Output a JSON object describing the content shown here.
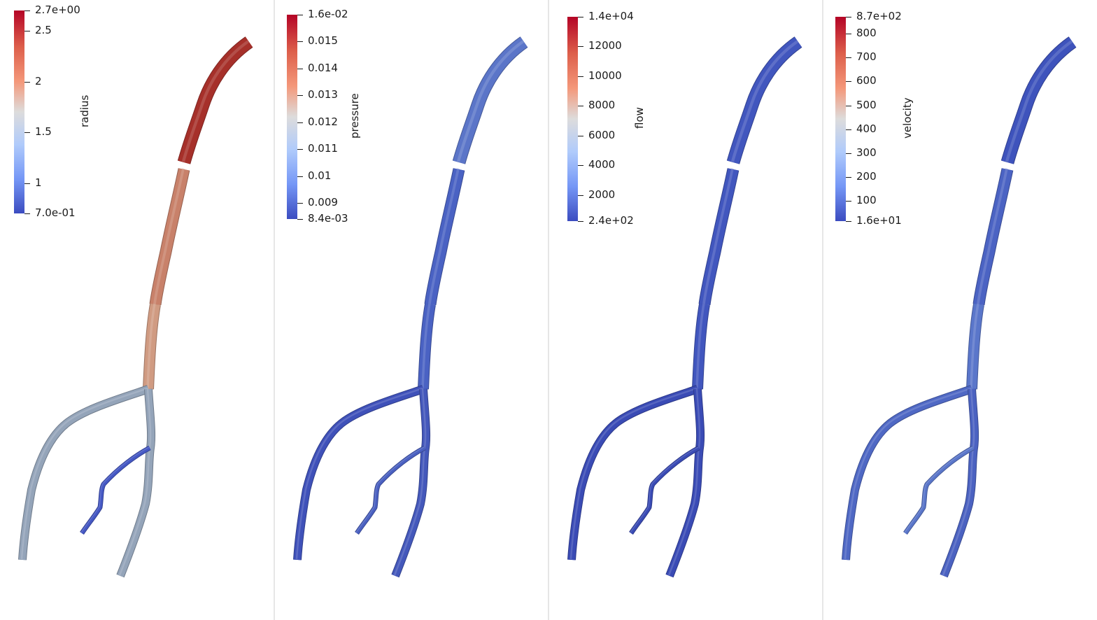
{
  "panels": [
    {
      "title": "radius",
      "max_label": "2.7e+00",
      "min_label": "7.0e-01",
      "range": [
        0.7,
        2.7
      ],
      "ticks": [
        "2.5",
        "2",
        "1.5",
        "1"
      ],
      "segments": {
        "trunk_upper": "#a6302a",
        "trunk_mid": "#c8816a",
        "trunk_lower": "#d09b82",
        "left_branch": "#94a4b9",
        "right_branch": "#94a4b9",
        "small_branch": "#4558c4"
      }
    },
    {
      "title": "pressure",
      "max_label": "1.6e-02",
      "min_label": "8.4e-03",
      "range": [
        0.0084,
        0.016
      ],
      "ticks": [
        "0.015",
        "0.014",
        "0.013",
        "0.012",
        "0.011",
        "0.01",
        "0.009"
      ],
      "segments": {
        "trunk_upper": "#5b75c8",
        "trunk_mid": "#4a62c3",
        "trunk_lower": "#4a62c3",
        "left_branch": "#3f51b9",
        "right_branch": "#4458bb",
        "small_branch": "#4a60c1"
      }
    },
    {
      "title": "flow",
      "max_label": "1.4e+04",
      "min_label": "2.4e+02",
      "range": [
        240,
        14000
      ],
      "ticks": [
        "12000",
        "10000",
        "8000",
        "6000",
        "4000",
        "2000"
      ],
      "segments": {
        "trunk_upper": "#4156be",
        "trunk_mid": "#4156be",
        "trunk_lower": "#4156be",
        "left_branch": "#3a4bb5",
        "right_branch": "#3a4bb5",
        "small_branch": "#3a4bb5"
      }
    },
    {
      "title": "velocity",
      "max_label": "8.7e+02",
      "min_label": "1.6e+01",
      "range": [
        16,
        870
      ],
      "ticks": [
        "800",
        "700",
        "600",
        "500",
        "400",
        "300",
        "200",
        "100"
      ],
      "segments": {
        "trunk_upper": "#3e53bc",
        "trunk_mid": "#4b63c3",
        "trunk_lower": "#5a76ca",
        "left_branch": "#4f68c4",
        "right_branch": "#4b62c1",
        "small_branch": "#5a76ca"
      }
    }
  ]
}
